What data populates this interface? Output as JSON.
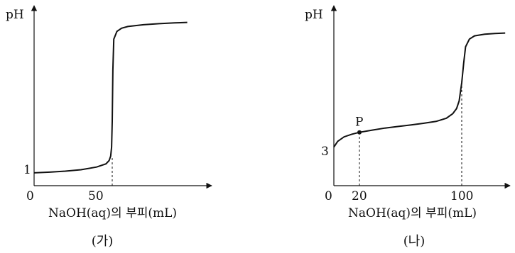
{
  "chart_data": [
    {
      "type": "line",
      "panel_label": "(가)",
      "ylabel": "pH",
      "xlabel": "NaOH(aq)의 부피(mL)",
      "x_ticks": [
        "0",
        "50"
      ],
      "y_ticks": [
        "1"
      ],
      "xlim": [
        0,
        100
      ],
      "series": [
        {
          "x": [
            0,
            10,
            20,
            30,
            40,
            46,
            48,
            49,
            49.6,
            50,
            50.4,
            51,
            53,
            56,
            60,
            70,
            80,
            90,
            98
          ],
          "y": [
            1.0,
            1.05,
            1.13,
            1.24,
            1.45,
            1.7,
            1.95,
            2.3,
            3.0,
            5.0,
            9.0,
            11.4,
            12.0,
            12.25,
            12.38,
            12.52,
            12.6,
            12.66,
            12.7
          ]
        }
      ],
      "ylim": [
        0,
        14
      ],
      "dashed_x": 50
    },
    {
      "type": "line",
      "panel_label": "(나)",
      "ylabel": "pH",
      "xlabel": "NaOH(aq)의 부피(mL)",
      "x_ticks": [
        "0",
        "20",
        "100"
      ],
      "y_ticks": [
        "3"
      ],
      "xlim": [
        0,
        140
      ],
      "series": [
        {
          "x": [
            0,
            3,
            8,
            14,
            20,
            30,
            40,
            50,
            60,
            70,
            80,
            88,
            93,
            96,
            98,
            100,
            101.5,
            103,
            106,
            110,
            118,
            126,
            134
          ],
          "y": [
            3.0,
            3.45,
            3.8,
            4.0,
            4.15,
            4.32,
            4.48,
            4.6,
            4.72,
            4.85,
            5.0,
            5.25,
            5.6,
            6.0,
            6.6,
            8.0,
            9.5,
            10.8,
            11.4,
            11.65,
            11.78,
            11.84,
            11.87
          ]
        }
      ],
      "points": [
        {
          "label": "P",
          "x": 20,
          "y": 4.15
        }
      ],
      "ylim": [
        0,
        14
      ],
      "dashed_x": [
        20,
        100
      ]
    }
  ]
}
